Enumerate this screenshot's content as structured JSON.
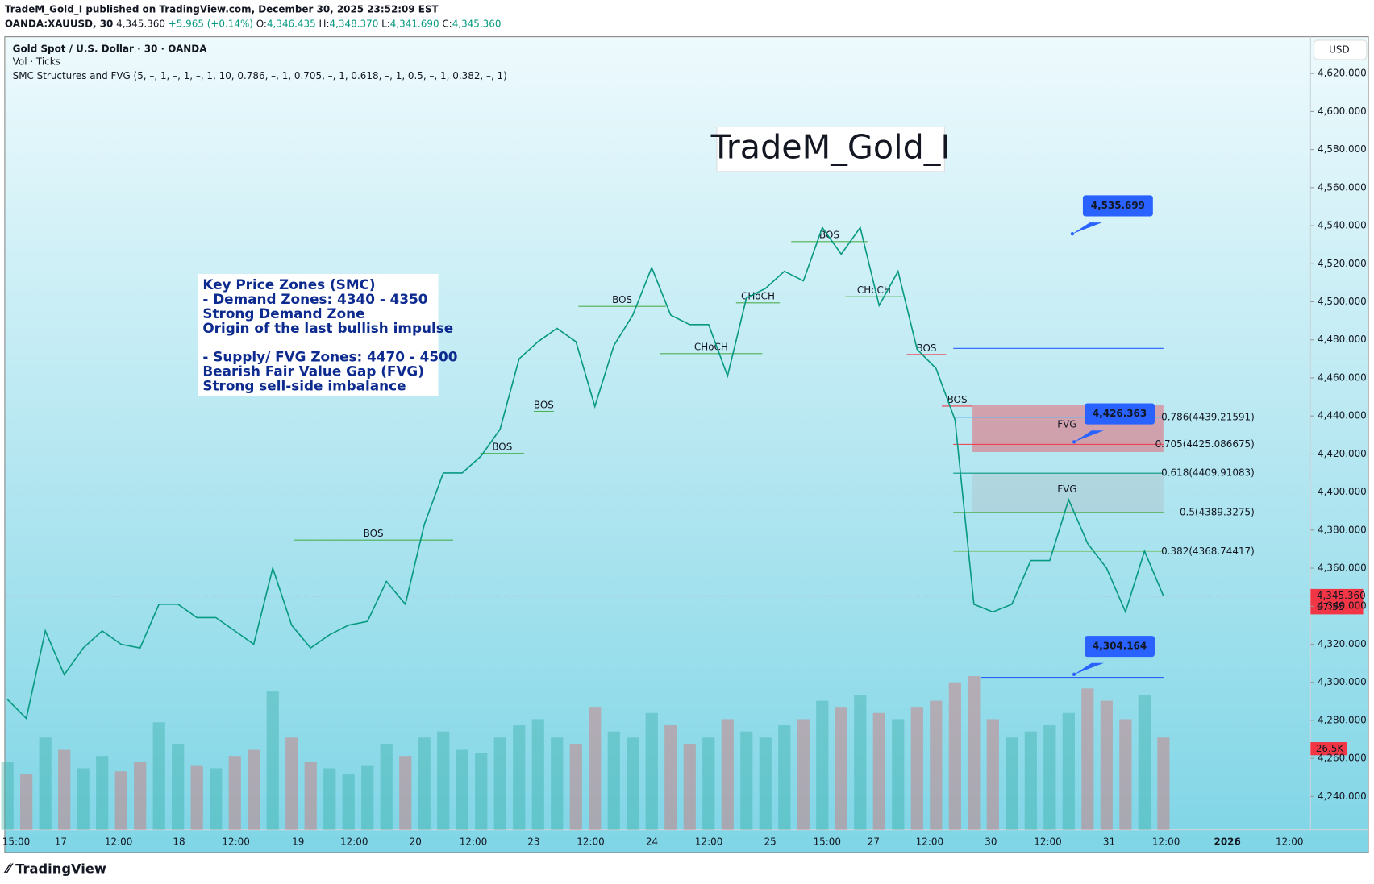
{
  "header": {
    "line1": "TradeM_Gold_I published on TradingView.com, December 30, 2025 23:52:09 EST",
    "symbol": "OANDA:XAUUSD, 30",
    "last": "4,345.360",
    "change": "+5.965 (+0.14%)",
    "ohlc": [
      {
        "key": "O:",
        "value": "4,346.435"
      },
      {
        "key": "H:",
        "value": "4,348.370"
      },
      {
        "key": "L:",
        "value": "4,341.690"
      },
      {
        "key": "C:",
        "value": "4,345.360"
      }
    ]
  },
  "legend": {
    "title": "Gold Spot / U.S. Dollar · 30 · OANDA",
    "volume": "Vol · Ticks",
    "indicator": "SMC Structures and FVG (5, –, 1, –, 1, –, 1, 10, 0.786, –, 1, 0.705, –, 1, 0.618, –, 1, 0.5, –, 1, 0.382, –, 1)"
  },
  "watermark": "TradeM_Gold_I",
  "note": {
    "lines": [
      "Key Price Zones (SMC)",
      "- Demand Zones: 4340 - 4350",
      "Strong Demand Zone",
      "Origin of the last bullish impulse",
      "",
      "- Supply/ FVG Zones: 4470 - 4500",
      "Bearish Fair Value Gap (FVG)",
      "Strong sell-side imbalance"
    ]
  },
  "chart_data": {
    "type": "line",
    "currency": "USD",
    "ylim": [
      4222.5,
      4639.3
    ],
    "yticks": [
      {
        "value": 4240,
        "label": "4,240.000"
      },
      {
        "value": 4260,
        "label": "4,260.000"
      },
      {
        "value": 4280,
        "label": "4,280.000"
      },
      {
        "value": 4300,
        "label": "4,300.000"
      },
      {
        "value": 4320,
        "label": "4,320.000"
      },
      {
        "value": 4340,
        "label": "4,340.000"
      },
      {
        "value": 4360,
        "label": "4,360.000"
      },
      {
        "value": 4380,
        "label": "4,380.000"
      },
      {
        "value": 4400,
        "label": "4,400.000"
      },
      {
        "value": 4420,
        "label": "4,420.000"
      },
      {
        "value": 4440,
        "label": "4,440.000"
      },
      {
        "value": 4460,
        "label": "4,460.000"
      },
      {
        "value": 4480,
        "label": "4,480.000"
      },
      {
        "value": 4500,
        "label": "4,500.000"
      },
      {
        "value": 4520,
        "label": "4,520.000"
      },
      {
        "value": 4540,
        "label": "4,540.000"
      },
      {
        "value": 4560,
        "label": "4,560.000"
      },
      {
        "value": 4580,
        "label": "4,580.000"
      },
      {
        "value": 4600,
        "label": "4,600.000"
      },
      {
        "value": 4620,
        "label": "4,620.000"
      }
    ],
    "xticks": [
      "15:00",
      "17",
      "12:00",
      "18",
      "12:00",
      "19",
      "12:00",
      "20",
      "12:00",
      "23",
      "12:00",
      "24",
      "12:00",
      "25",
      "15:00",
      "27",
      "12:00",
      "30",
      "12:00",
      "31",
      "12:00",
      "2026",
      "12:00"
    ],
    "series": [
      {
        "name": "XAUUSD",
        "color": "#089981",
        "values": [
          4291,
          4281,
          4327,
          4304,
          4318,
          4327,
          4320,
          4318,
          4341,
          4341,
          4334,
          4334,
          4327,
          4320,
          4360,
          4330,
          4318,
          4325,
          4330,
          4332,
          4353,
          4341,
          4383,
          4410,
          4410,
          4419,
          4433,
          4470,
          4479,
          4486,
          4479,
          4445,
          4477,
          4493,
          4518,
          4493,
          4488,
          4488,
          4461,
          4502,
          4507,
          4516,
          4511,
          4539,
          4525,
          4539,
          4498,
          4516,
          4475,
          4465,
          4438,
          4341,
          4337,
          4341,
          4364,
          4364,
          4396,
          4373,
          4360,
          4337,
          4369,
          4345.36
        ]
      }
    ],
    "volume": {
      "label": "26.5K",
      "value": 26.5,
      "values": [
        22,
        18,
        30,
        26,
        20,
        24,
        19,
        22,
        35,
        28,
        21,
        20,
        24,
        26,
        45,
        30,
        22,
        20,
        18,
        21,
        28,
        24,
        30,
        32,
        26,
        25,
        30,
        34,
        36,
        30,
        28,
        40,
        32,
        30,
        38,
        34,
        28,
        30,
        36,
        32,
        30,
        34,
        36,
        42,
        40,
        44,
        38,
        36,
        40,
        42,
        48,
        50,
        36,
        30,
        32,
        34,
        38,
        46,
        42,
        36,
        44,
        30
      ]
    },
    "last_price": {
      "value": 4345.36,
      "label": "4,345.360",
      "countdown": "07:55"
    },
    "structures": [
      {
        "text": "BOS",
        "color": "#4caf50"
      },
      {
        "text": "BOS",
        "color": "#4caf50"
      },
      {
        "text": "BOS",
        "color": "#4caf50"
      },
      {
        "text": "BOS",
        "color": "#4caf50"
      },
      {
        "text": "CHoCH",
        "color": "#4caf50"
      },
      {
        "text": "CHoCH",
        "color": "#4caf50"
      },
      {
        "text": "BOS",
        "color": "#4caf50"
      },
      {
        "text": "CHoCH",
        "color": "#4caf50"
      },
      {
        "text": "BOS",
        "color": "#f23645"
      },
      {
        "text": "BOS",
        "color": "#f23645"
      }
    ],
    "zones": [
      {
        "label": "FVG",
        "top": 4446,
        "bottom": 4421,
        "color": "#f23645"
      },
      {
        "label": "FVG",
        "top": 4410,
        "bottom": 4389,
        "color": "#b0bec5"
      }
    ],
    "fib_levels": [
      {
        "value": 4439.21591,
        "label": "0.786(4439.21591)",
        "color": "#64b5f6"
      },
      {
        "value": 4425.086675,
        "label": "0.705(4425.086675)",
        "color": "#f23645"
      },
      {
        "value": 4409.91083,
        "label": "0.618(4409.91083)",
        "color": "#089981"
      },
      {
        "value": 4389.3275,
        "label": "0.5(4389.3275)",
        "color": "#4caf50"
      },
      {
        "value": 4368.74417,
        "label": "0.382(4368.74417)",
        "color": "#81c784"
      }
    ],
    "lines": [
      {
        "value": 4475.5,
        "color": "#2962ff"
      },
      {
        "value": 4302.6,
        "color": "#2962ff"
      }
    ],
    "callouts": [
      {
        "value": 4535.699,
        "label": "4,535.699"
      },
      {
        "value": 4426.363,
        "label": "4,426.363"
      },
      {
        "value": 4304.164,
        "label": "4,304.164"
      }
    ]
  },
  "footer": {
    "brand": "TradingView"
  }
}
